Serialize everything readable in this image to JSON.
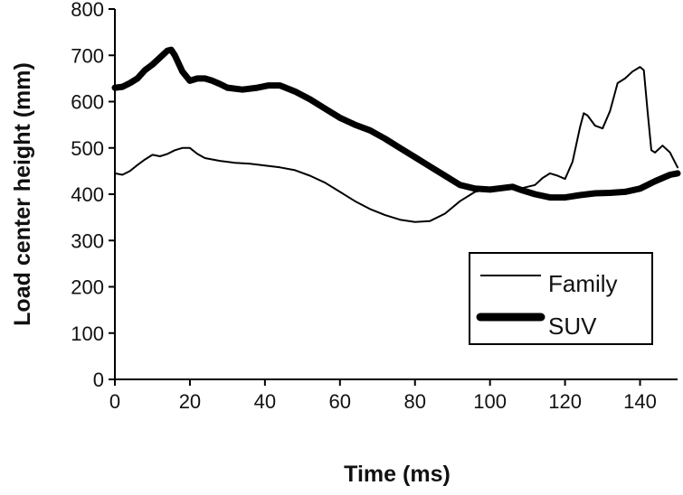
{
  "chart_data": {
    "type": "line",
    "title": "",
    "xlabel": "Time (ms)",
    "ylabel": "Load center height (mm)",
    "xlim": [
      0,
      150
    ],
    "ylim": [
      0,
      800
    ],
    "x_ticks": [
      0,
      20,
      40,
      60,
      80,
      100,
      120,
      140
    ],
    "y_ticks": [
      0,
      100,
      200,
      300,
      400,
      500,
      600,
      700,
      800
    ],
    "grid": false,
    "legend_position": "bottom-right",
    "series": [
      {
        "name": "Family",
        "color": "#000000",
        "line": "thin",
        "points": [
          [
            0,
            445
          ],
          [
            2,
            442
          ],
          [
            4,
            450
          ],
          [
            6,
            463
          ],
          [
            8,
            475
          ],
          [
            10,
            485
          ],
          [
            12,
            482
          ],
          [
            14,
            487
          ],
          [
            16,
            495
          ],
          [
            18,
            500
          ],
          [
            20,
            500
          ],
          [
            22,
            487
          ],
          [
            24,
            478
          ],
          [
            28,
            472
          ],
          [
            32,
            468
          ],
          [
            36,
            466
          ],
          [
            40,
            462
          ],
          [
            44,
            458
          ],
          [
            48,
            452
          ],
          [
            52,
            440
          ],
          [
            56,
            425
          ],
          [
            60,
            405
          ],
          [
            64,
            385
          ],
          [
            68,
            368
          ],
          [
            72,
            355
          ],
          [
            76,
            345
          ],
          [
            80,
            340
          ],
          [
            84,
            342
          ],
          [
            88,
            358
          ],
          [
            92,
            385
          ],
          [
            96,
            405
          ],
          [
            100,
            412
          ],
          [
            104,
            415
          ],
          [
            108,
            412
          ],
          [
            112,
            420
          ],
          [
            114,
            435
          ],
          [
            116,
            445
          ],
          [
            118,
            440
          ],
          [
            120,
            433
          ],
          [
            122,
            470
          ],
          [
            124,
            545
          ],
          [
            125,
            575
          ],
          [
            126,
            570
          ],
          [
            128,
            548
          ],
          [
            130,
            542
          ],
          [
            132,
            580
          ],
          [
            134,
            640
          ],
          [
            136,
            650
          ],
          [
            138,
            665
          ],
          [
            140,
            675
          ],
          [
            141,
            668
          ],
          [
            142,
            580
          ],
          [
            143,
            495
          ],
          [
            144,
            490
          ],
          [
            146,
            505
          ],
          [
            148,
            490
          ],
          [
            150,
            458
          ]
        ]
      },
      {
        "name": "SUV",
        "color": "#000000",
        "line": "thick",
        "points": [
          [
            0,
            630
          ],
          [
            2,
            632
          ],
          [
            4,
            640
          ],
          [
            6,
            650
          ],
          [
            8,
            668
          ],
          [
            10,
            680
          ],
          [
            12,
            695
          ],
          [
            14,
            710
          ],
          [
            15,
            712
          ],
          [
            16,
            700
          ],
          [
            18,
            665
          ],
          [
            20,
            645
          ],
          [
            22,
            650
          ],
          [
            24,
            650
          ],
          [
            26,
            645
          ],
          [
            28,
            638
          ],
          [
            30,
            630
          ],
          [
            34,
            626
          ],
          [
            38,
            630
          ],
          [
            41,
            635
          ],
          [
            44,
            635
          ],
          [
            48,
            622
          ],
          [
            52,
            605
          ],
          [
            56,
            585
          ],
          [
            60,
            565
          ],
          [
            64,
            550
          ],
          [
            68,
            538
          ],
          [
            72,
            520
          ],
          [
            76,
            500
          ],
          [
            80,
            480
          ],
          [
            84,
            460
          ],
          [
            88,
            440
          ],
          [
            92,
            420
          ],
          [
            96,
            412
          ],
          [
            100,
            410
          ],
          [
            104,
            414
          ],
          [
            106,
            416
          ],
          [
            108,
            410
          ],
          [
            112,
            400
          ],
          [
            116,
            393
          ],
          [
            120,
            393
          ],
          [
            124,
            398
          ],
          [
            128,
            402
          ],
          [
            132,
            403
          ],
          [
            136,
            405
          ],
          [
            140,
            412
          ],
          [
            144,
            428
          ],
          [
            148,
            442
          ],
          [
            150,
            445
          ]
        ]
      }
    ]
  }
}
